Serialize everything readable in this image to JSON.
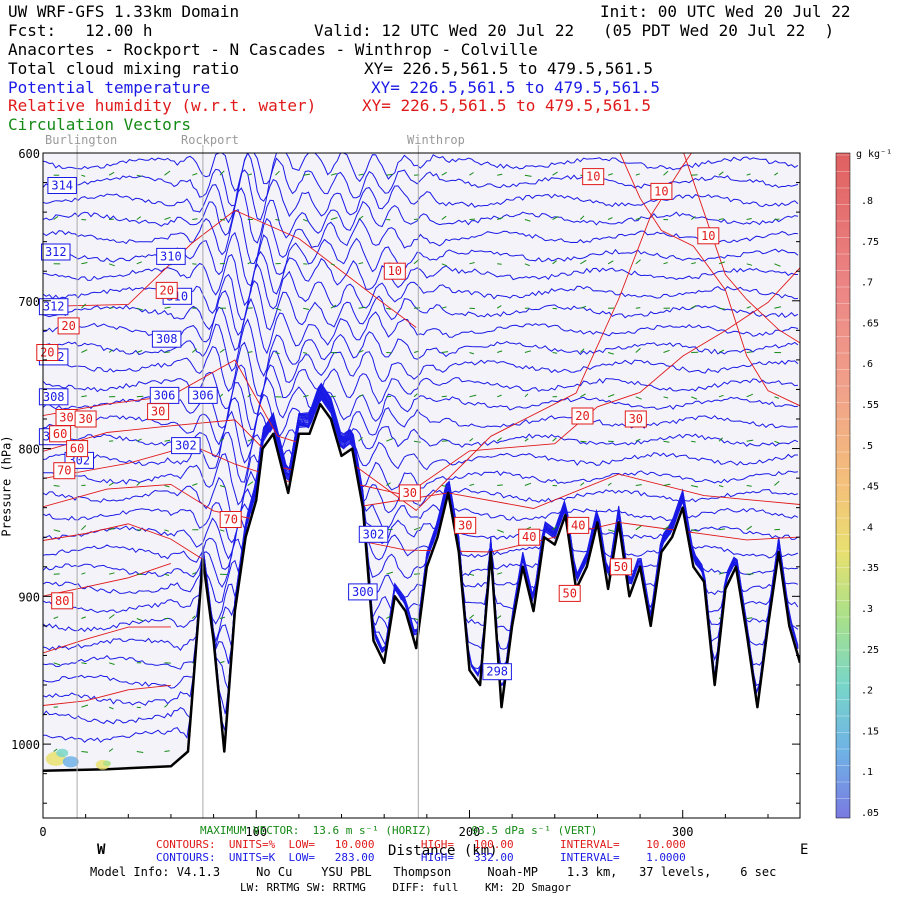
{
  "header": {
    "line1_left": "UW WRF-GFS 1.33km Domain",
    "line1_right": "Init: 00 UTC Wed 20 Jul 22",
    "line2_left": "Fcst:   12.00 h",
    "line2_right": "Valid: 12 UTC Wed 20 Jul 22   (05 PDT Wed 20 Jul 22  )",
    "line3": "Anacortes - Rockport - N Cascades - Winthrop - Colville",
    "fields": [
      {
        "name": "Total cloud mixing ratio",
        "xy": "XY= 226.5,561.5 to 479.5,561.5",
        "color": "#000000"
      },
      {
        "name": "Potential temperature",
        "xy": "XY= 226.5,561.5 to 479.5,561.5",
        "color": "#1a1ae6"
      },
      {
        "name": "Relative humidity (w.r.t. water)",
        "xy": "XY= 226.5,561.5 to 479.5,561.5",
        "color": "#e01a1a"
      },
      {
        "name": "Circulation Vectors",
        "xy": "",
        "color": "#158a15"
      }
    ]
  },
  "locations": [
    "Burlington",
    "Rockport",
    "Winthrop"
  ],
  "axes": {
    "y_ticks": [
      "600",
      "700",
      "800",
      "900",
      "1000"
    ],
    "y_label": "Pressure (hPa)",
    "x_ticks": [
      "0",
      "100",
      "200",
      "300"
    ],
    "x_label": "Distance (km)",
    "west": "W",
    "east": "E"
  },
  "colorbar": {
    "unit": "g kg⁻¹",
    "labels": [
      ".8",
      ".75",
      ".7",
      ".65",
      ".6",
      ".55",
      ".5",
      ".45",
      ".4",
      ".35",
      ".3",
      ".25",
      ".2",
      ".15",
      ".1",
      ".05"
    ]
  },
  "footer": {
    "max_vector": "MAXIMUM VECTOR:  13.6 m s⁻¹ (HORIZ)      93.5 dPa s⁻¹ (VERT)",
    "contours_rh": "CONTOURS:  UNITS=%  LOW=   10.000       HIGH=   100.00       INTERVAL=    10.000",
    "contours_theta": "CONTOURS:  UNITS=K  LOW=   283.00       HIGH=   332.00       INTERVAL=    1.0000",
    "model_info": "Model Info: V4.1.3     No Cu    YSU PBL   Thompson     Noah-MP    1.3 km,   37 levels,    6 sec",
    "physics": "LW: RRTMG SW: RRTMG    DIFF: full    KM: 2D Smagor"
  },
  "chart_data": {
    "type": "cross-section",
    "x_range_km": [
      0,
      355
    ],
    "y_range_hpa": [
      1050,
      600
    ],
    "location_markers": [
      {
        "name": "Burlington",
        "x_km": 16
      },
      {
        "name": "Rockport",
        "x_km": 75
      },
      {
        "name": "Winthrop",
        "x_km": 176
      }
    ],
    "terrain_surface_hpa": {
      "x_km": [
        0,
        30,
        60,
        68,
        75,
        80,
        85,
        90,
        95,
        100,
        103,
        108,
        115,
        120,
        125,
        130,
        135,
        140,
        145,
        150,
        155,
        160,
        165,
        170,
        175,
        180,
        185,
        190,
        195,
        200,
        205,
        210,
        215,
        220,
        225,
        230,
        235,
        240,
        245,
        250,
        255,
        260,
        265,
        270,
        275,
        280,
        285,
        290,
        295,
        300,
        305,
        310,
        315,
        320,
        325,
        330,
        335,
        340,
        345,
        350,
        355
      ],
      "p_hpa": [
        1018,
        1017,
        1015,
        1005,
        875,
        930,
        1005,
        910,
        860,
        835,
        800,
        790,
        830,
        790,
        790,
        770,
        780,
        805,
        800,
        840,
        930,
        945,
        900,
        910,
        935,
        880,
        860,
        830,
        870,
        950,
        960,
        870,
        975,
        920,
        880,
        910,
        860,
        865,
        845,
        895,
        880,
        850,
        895,
        850,
        900,
        880,
        920,
        870,
        860,
        840,
        880,
        890,
        960,
        895,
        880,
        925,
        975,
        920,
        870,
        920,
        945
      ]
    },
    "potential_temperature_K": {
      "contour_labels": [
        "314",
        "312",
        "312",
        "312",
        "310",
        "310",
        "308",
        "308",
        "306",
        "306",
        "304",
        "302",
        "302",
        "302",
        "300",
        "298"
      ],
      "interval": 1.0,
      "low": 283.0,
      "high": 332.0,
      "color": "#1a1ae6"
    },
    "relative_humidity_pct": {
      "contour_labels": [
        "10",
        "10",
        "10",
        "10",
        "20",
        "20",
        "20",
        "20",
        "30",
        "30",
        "30",
        "30",
        "30",
        "30",
        "40",
        "40",
        "50",
        "50",
        "60",
        "60",
        "70",
        "70",
        "80"
      ],
      "interval": 10.0,
      "low": 10.0,
      "high": 100.0,
      "color": "#e01a1a"
    },
    "circulation_vectors": {
      "max_horizontal_m_s": 13.6,
      "max_vertical_dPa_s": 93.5,
      "color": "#158a15"
    }
  }
}
